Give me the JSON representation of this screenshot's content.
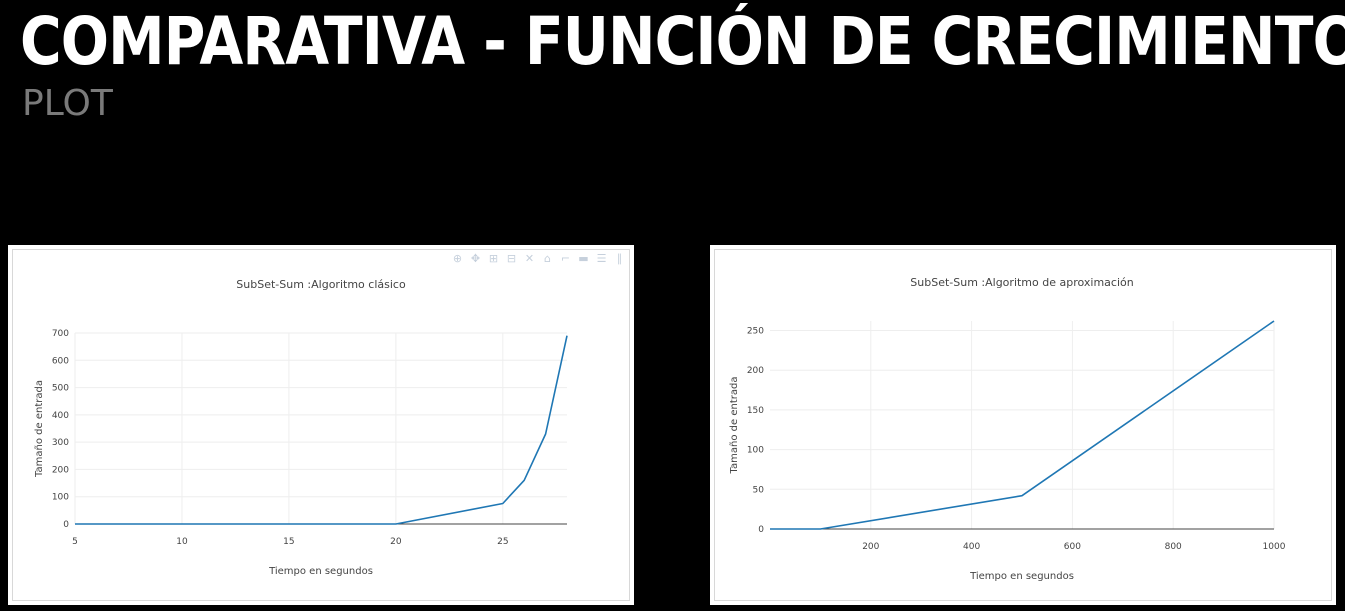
{
  "slide": {
    "title": "COMPARATIVA - FUNCIÓN DE CRECIMIENTO",
    "subtitle": "PLOT"
  },
  "modebar": {
    "icons": [
      "zoom-icon",
      "pan-icon",
      "zoom-in-icon",
      "zoom-out-icon",
      "autoscale-icon",
      "home-icon",
      "spike-lines-icon",
      "hover-closest-icon",
      "hover-compare-icon",
      "plotly-logo-icon"
    ],
    "glyphs": [
      "⊕",
      "✥",
      "⊞",
      "⊟",
      "✕",
      "⌂",
      "⌐",
      "▬",
      "☰",
      "∥"
    ]
  },
  "chart_data": [
    {
      "type": "line",
      "title": "SubSet-Sum :Algoritmo clásico",
      "xlabel": "Tiempo en segundos",
      "ylabel": "Tamaño de entrada",
      "xlim": [
        5,
        28
      ],
      "ylim": [
        0,
        700
      ],
      "xticks": [
        5,
        10,
        15,
        20,
        25
      ],
      "yticks": [
        0,
        100,
        200,
        300,
        400,
        500,
        600,
        700
      ],
      "grid": true,
      "line_color": "#1f77b4",
      "series": [
        {
          "x": [
            5,
            10,
            15,
            20,
            25,
            26,
            27,
            28
          ],
          "y": [
            0,
            0,
            0,
            0,
            75,
            160,
            330,
            690
          ]
        }
      ]
    },
    {
      "type": "line",
      "title": "SubSet-Sum :Algoritmo de aproximación",
      "xlabel": "Tiempo en segundos",
      "ylabel": "Tamaño de entrada",
      "xlim": [
        0,
        1000
      ],
      "ylim": [
        0,
        262
      ],
      "xticks": [
        200,
        400,
        600,
        800,
        1000
      ],
      "yticks": [
        0,
        50,
        100,
        150,
        200,
        250
      ],
      "grid": true,
      "line_color": "#1f77b4",
      "series": [
        {
          "x": [
            0,
            100,
            500,
            1000
          ],
          "y": [
            0,
            0,
            42,
            262
          ]
        }
      ]
    }
  ]
}
